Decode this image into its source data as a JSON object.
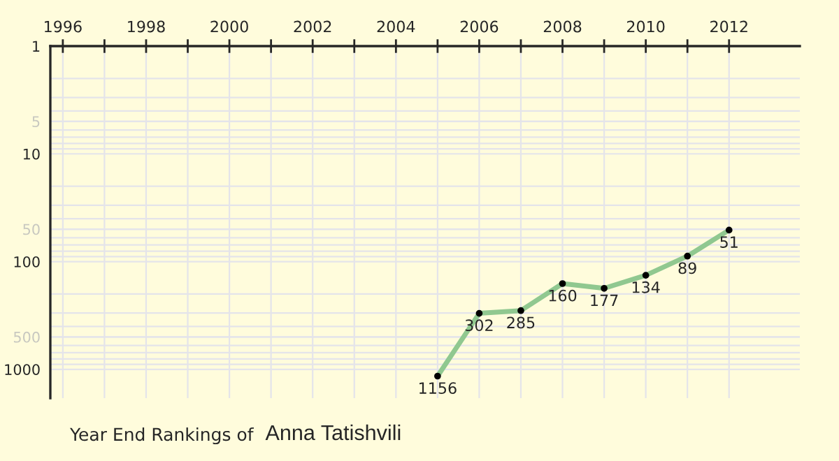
{
  "chart_data": {
    "type": "line",
    "title": "Year End Rankings of",
    "subtitle": "Anna Tatishvili",
    "x": [
      2005,
      2006,
      2007,
      2008,
      2009,
      2010,
      2011,
      2012
    ],
    "series": [
      {
        "color": "#90c890",
        "values": [
          1156,
          302,
          285,
          160,
          177,
          134,
          89,
          51
        ]
      }
    ],
    "xlim": [
      1995.7,
      2013.7
    ],
    "xticks": [
      1996,
      {
        "value": 1997,
        "label": null
      },
      1998,
      {
        "value": 1999,
        "label": null
      },
      2000,
      {
        "value": 2001,
        "label": null
      },
      2002,
      {
        "value": 2003,
        "label": null
      },
      2004,
      {
        "value": 2005,
        "label": null
      },
      2006,
      {
        "value": 2007,
        "label": null
      },
      2008,
      {
        "value": 2009,
        "label": null
      },
      2010,
      {
        "value": 2011,
        "label": null
      },
      2012
    ],
    "ylim": [
      1850,
      1
    ],
    "yticks": [
      1,
      5,
      10,
      50,
      100,
      500,
      1000
    ],
    "log": "y",
    "grid": true,
    "marker": "circle",
    "line_style": "solid",
    "data_labels": true
  }
}
